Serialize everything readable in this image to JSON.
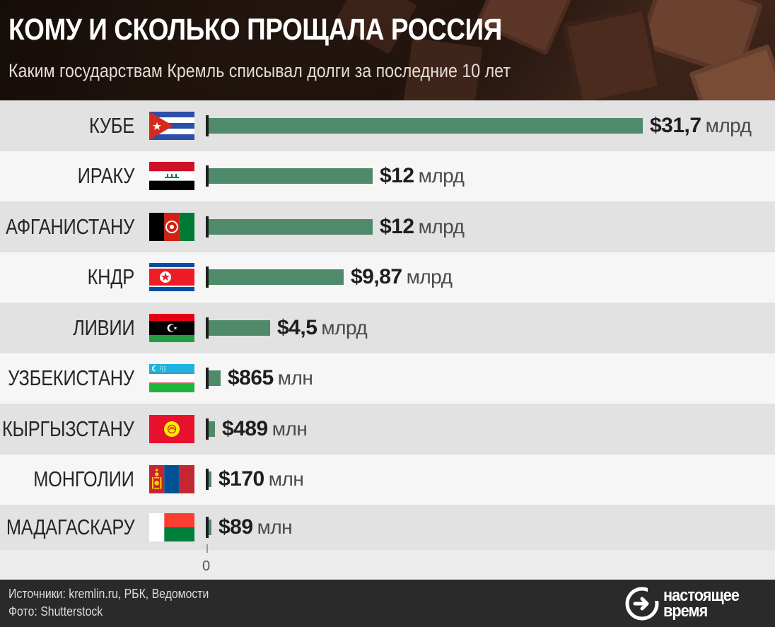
{
  "header": {
    "title": "КОМУ И СКОЛЬКО ПРОЩАЛА РОССИЯ",
    "subtitle": "Каким государствам Кремль списывал долги за последние 10 лет"
  },
  "chart_data": {
    "type": "bar",
    "orientation": "horizontal",
    "title": "КОМУ И СКОЛЬКО ПРОЩАЛА РОССИЯ",
    "subtitle": "Каким государствам Кремль списывал долги за последние 10 лет",
    "categories": [
      "КУБЕ",
      "ИРАКУ",
      "АФГАНИСТАНУ",
      "КНДР",
      "ЛИВИИ",
      "УЗБЕКИСТАНУ",
      "КЫРГЫЗСТАНУ",
      "МОНГОЛИИ",
      "МАДАГАСКАРУ"
    ],
    "values_usd_billion": [
      31.7,
      12,
      12,
      9.87,
      4.5,
      0.865,
      0.489,
      0.17,
      0.089
    ],
    "labels": [
      {
        "amount": "$31,7",
        "unit": "млрд"
      },
      {
        "amount": "$12",
        "unit": "млрд"
      },
      {
        "amount": "$12",
        "unit": "млрд"
      },
      {
        "amount": "$9,87",
        "unit": "млрд"
      },
      {
        "amount": "$4,5",
        "unit": "млрд"
      },
      {
        "amount": "$865",
        "unit": "млн"
      },
      {
        "amount": "$489",
        "unit": "млн"
      },
      {
        "amount": "$170",
        "unit": "млн"
      },
      {
        "amount": "$89",
        "unit": "млн"
      }
    ],
    "flags": [
      "cuba-flag",
      "iraq-flag",
      "afghanistan-flag",
      "north-korea-flag",
      "libya-flag",
      "uzbekistan-flag",
      "kyrgyzstan-flag",
      "mongolia-flag",
      "madagascar-flag"
    ],
    "xlim": [
      0,
      31.7
    ],
    "x_tick_labels": [
      "0"
    ],
    "bar_color": "#4f8a6b",
    "grid": false,
    "legend": "none"
  },
  "footer": {
    "sources": "Источники: kremlin.ru, РБК, Ведомости",
    "photo": "Фото: Shutterstock",
    "logo_line1": "настоящее",
    "logo_line2": "время"
  },
  "colors": {
    "bar": "#4f8a6b",
    "row_odd": "#e2e2e2",
    "row_even": "#f6f6f6",
    "footer_bg": "#2a2a2a"
  }
}
